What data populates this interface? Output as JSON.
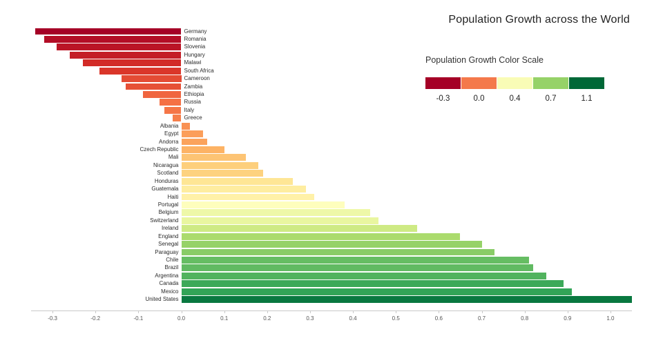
{
  "title": "Population Growth across the World",
  "legend": {
    "title": "Population Growth Color Scale",
    "stops": [
      {
        "label": "-0.3",
        "color": "#a50026"
      },
      {
        "label": "0.0",
        "color": "#f4794b"
      },
      {
        "label": "0.4",
        "color": "#f9fcb6"
      },
      {
        "label": "0.7",
        "color": "#96d268"
      },
      {
        "label": "1.1",
        "color": "#006837"
      }
    ]
  },
  "chart_data": {
    "type": "bar",
    "orientation": "horizontal",
    "title": "Population Growth across the World",
    "xlabel": "",
    "ylabel": "",
    "xlim": [
      -0.35,
      1.05
    ],
    "grid": false,
    "legend_position": "top-right",
    "categories": [
      "Germany",
      "Romania",
      "Slovenia",
      "Hungary",
      "Malawi",
      "South Africa",
      "Cameroon",
      "Zambia",
      "Ethiopia",
      "Russia",
      "Italy",
      "Greece",
      "Albania",
      "Egypt",
      "Andorra",
      "Czech Republic",
      "Mali",
      "Nicaragua",
      "Scotland",
      "Honduras",
      "Guatemala",
      "Haiti",
      "Portugal",
      "Belgium",
      "Switzerland",
      "Ireland",
      "England",
      "Senegal",
      "Paraguay",
      "Chile",
      "Brazil",
      "Argentina",
      "Canada",
      "Mexico",
      "United States"
    ],
    "values": [
      -0.34,
      -0.32,
      -0.29,
      -0.26,
      -0.23,
      -0.19,
      -0.14,
      -0.13,
      -0.09,
      -0.05,
      -0.04,
      -0.02,
      0.02,
      0.05,
      0.06,
      0.1,
      0.15,
      0.18,
      0.19,
      0.26,
      0.29,
      0.31,
      0.38,
      0.44,
      0.46,
      0.55,
      0.65,
      0.7,
      0.73,
      0.81,
      0.82,
      0.85,
      0.89,
      0.91,
      1.05
    ],
    "colors": [
      "#a50026",
      "#b30d26",
      "#ba1426",
      "#c41e27",
      "#d22b27",
      "#da362a",
      "#e44b34",
      "#e65036",
      "#f0653f",
      "#f57145",
      "#f57647",
      "#f67f4b",
      "#f99154",
      "#fb9e5a",
      "#fba35c",
      "#fdb365",
      "#fdc474",
      "#fdcf7c",
      "#fdd27f",
      "#fee695",
      "#feeda0",
      "#fff1a8",
      "#fefebd",
      "#eef8a8",
      "#e9f6a0",
      "#ceea84",
      "#abdb6d",
      "#96d268",
      "#89cc67",
      "#66bd63",
      "#61ba62",
      "#51b35e",
      "#3ca959",
      "#32a457",
      "#097840"
    ],
    "xtick_labels": [
      "-0.3",
      "-0.2",
      "-0.1",
      "0.0",
      "0.1",
      "0.2",
      "0.3",
      "0.4",
      "0.5",
      "0.6",
      "0.7",
      "0.8",
      "0.9",
      "1.0"
    ]
  }
}
